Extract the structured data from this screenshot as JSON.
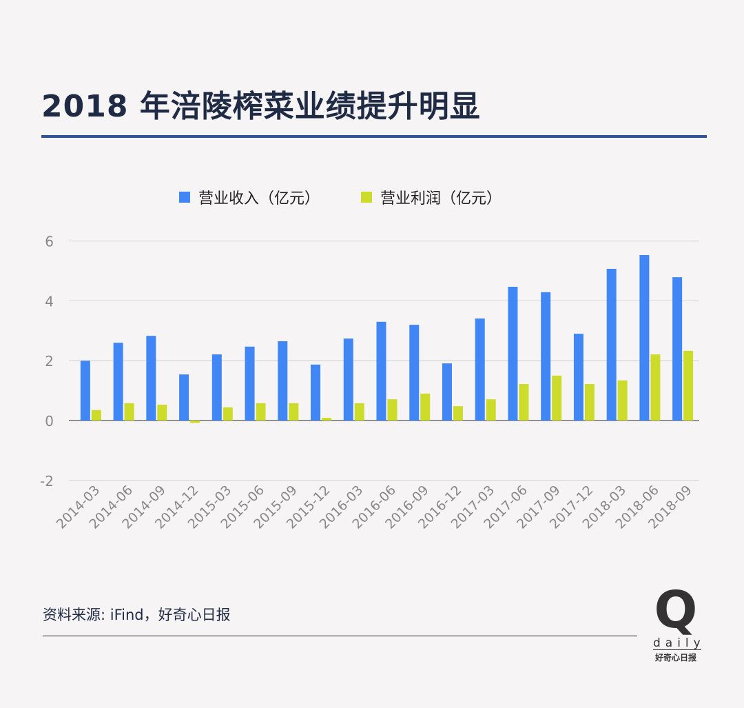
{
  "title": "2018 年涪陵榨菜业绩提升明显",
  "source": "资料来源: iFind，好奇心日报",
  "logo": {
    "mark": "Q",
    "word": "daily",
    "cn": "好奇心日报"
  },
  "colors": {
    "revenue": "#4186f5",
    "profit": "#cddc2a",
    "title": "#1f2a44",
    "rule": "#34529a"
  },
  "chart_data": {
    "type": "bar",
    "categories": [
      "2014-03",
      "2014-06",
      "2014-09",
      "2014-12",
      "2015-03",
      "2015-06",
      "2015-09",
      "2015-12",
      "2016-03",
      "2016-06",
      "2016-09",
      "2016-12",
      "2017-03",
      "2017-06",
      "2017-09",
      "2017-12",
      "2018-03",
      "2018-06",
      "2018-09"
    ],
    "series": [
      {
        "name": "营业收入（亿元）",
        "values": [
          2.0,
          2.6,
          2.83,
          1.54,
          2.21,
          2.47,
          2.65,
          1.87,
          2.74,
          3.3,
          3.2,
          1.91,
          3.41,
          4.47,
          4.29,
          2.9,
          5.07,
          5.53,
          4.79
        ]
      },
      {
        "name": "营业利润（亿元）",
        "values": [
          0.35,
          0.58,
          0.53,
          -0.08,
          0.44,
          0.58,
          0.58,
          0.09,
          0.58,
          0.71,
          0.9,
          0.48,
          0.71,
          1.22,
          1.5,
          1.22,
          1.34,
          2.21,
          2.33
        ]
      }
    ],
    "yticks": [
      -2,
      0,
      2,
      4,
      6
    ],
    "ylim": [
      -2,
      6
    ],
    "grid": true,
    "legend": "top"
  }
}
